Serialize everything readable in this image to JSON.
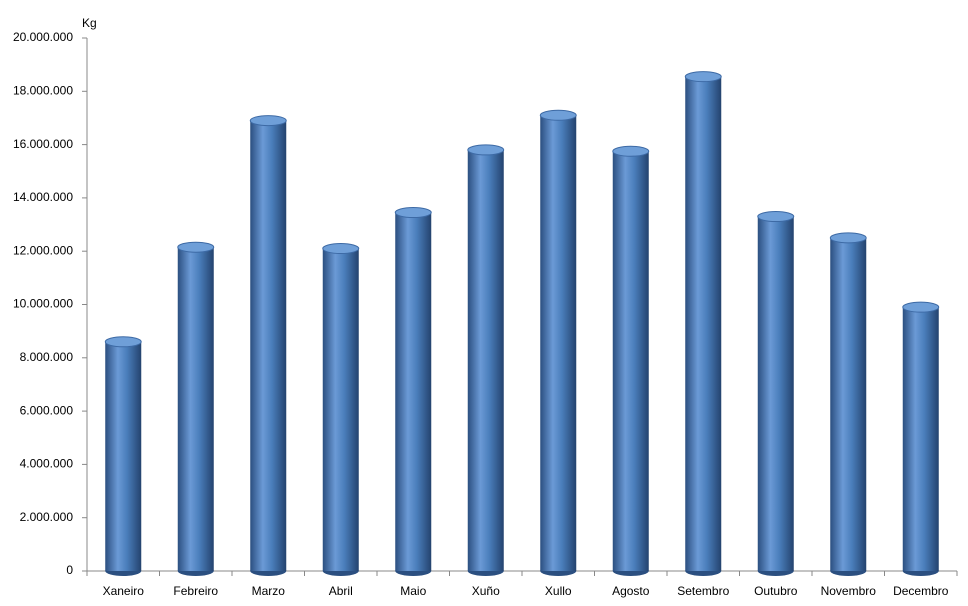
{
  "chart_data": {
    "type": "bar",
    "y_axis_label": "Kg",
    "categories": [
      "Xaneiro",
      "Febreiro",
      "Marzo",
      "Abril",
      "Maio",
      "Xuño",
      "Xullo",
      "Agosto",
      "Setembro",
      "Outubro",
      "Novembro",
      "Decembro"
    ],
    "values": [
      8600000,
      12150000,
      16900000,
      12100000,
      13450000,
      15800000,
      17100000,
      15750000,
      18550000,
      13300000,
      12500000,
      9900000
    ],
    "color": "#4a7ebb",
    "ylim": [
      0,
      20000000
    ],
    "yticks": [
      0,
      {
        "value": 2000000,
        "label": "2.000.000"
      },
      {
        "value": 4000000,
        "label": "4.000.000"
      },
      {
        "value": 6000000,
        "label": "6.000.000"
      },
      {
        "value": 8000000,
        "label": "8.000.000"
      },
      {
        "value": 10000000,
        "label": "10.000.000"
      },
      {
        "value": 12000000,
        "label": "12.000.000"
      },
      {
        "value": 14000000,
        "label": "14.000.000"
      },
      {
        "value": 16000000,
        "label": "16.000.000"
      },
      {
        "value": 18000000,
        "label": "18.000.000"
      },
      {
        "value": 20000000,
        "label": "20.000.000"
      }
    ],
    "grid": false
  }
}
